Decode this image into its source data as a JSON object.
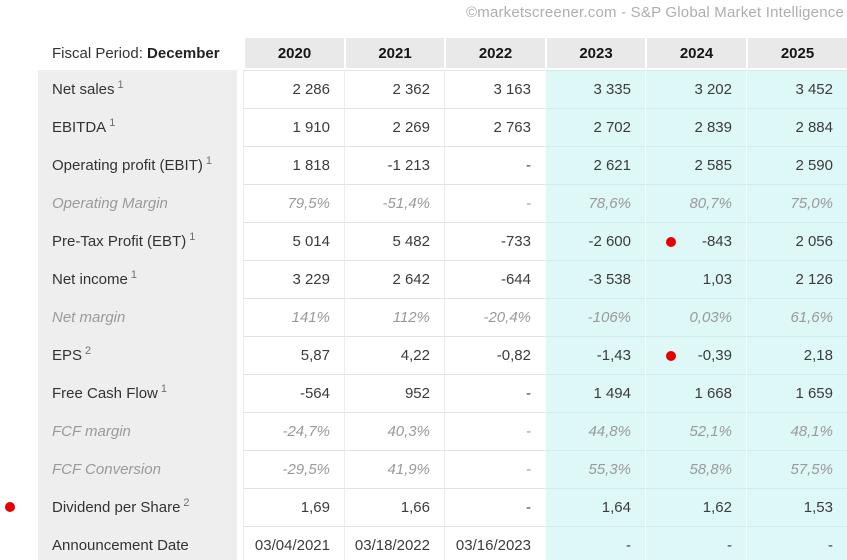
{
  "watermark": "©marketscreener.com - S&P Global Market Intelligence",
  "colors": {
    "highlight_estimate_columns": "#def7f7",
    "label_column_bg": "#eeeeee",
    "header_bg": "#e9e9e9",
    "marker_red": "#e60000",
    "muted_text": "#9a9a9a"
  },
  "table": {
    "header": {
      "fiscal_period_label": "Fiscal Period:",
      "fiscal_period_value": "December",
      "years": [
        "2020",
        "2021",
        "2022",
        "2023",
        "2024",
        "2025"
      ]
    },
    "highlight_from_column": 3,
    "rows": [
      {
        "label": "Net sales",
        "sup": "1",
        "muted": false,
        "values": [
          "2 286",
          "2 362",
          "3 163",
          "3 335",
          "3 202",
          "3 452"
        ]
      },
      {
        "label": "EBITDA",
        "sup": "1",
        "muted": false,
        "values": [
          "1 910",
          "2 269",
          "2 763",
          "2 702",
          "2 839",
          "2 884"
        ]
      },
      {
        "label": "Operating profit (EBIT)",
        "sup": "1",
        "muted": false,
        "values": [
          "1 818",
          "-1 213",
          "-",
          "2 621",
          "2 585",
          "2 590"
        ]
      },
      {
        "label": "Operating Margin",
        "muted": true,
        "values": [
          "79,5%",
          "-51,4%",
          "-",
          "78,6%",
          "80,7%",
          "75,0%"
        ]
      },
      {
        "label": "Pre-Tax Profit (EBT)",
        "sup": "1",
        "muted": false,
        "dot_col": 4,
        "values": [
          "5 014",
          "5 482",
          "-733",
          "-2 600",
          "-843",
          "2 056"
        ]
      },
      {
        "label": "Net income",
        "sup": "1",
        "muted": false,
        "values": [
          "3 229",
          "2 642",
          "-644",
          "-3 538",
          "1,03",
          "2 126"
        ]
      },
      {
        "label": "Net margin",
        "muted": true,
        "values": [
          "141%",
          "112%",
          "-20,4%",
          "-106%",
          "0,03%",
          "61,6%"
        ]
      },
      {
        "label": "EPS",
        "sup": "2",
        "muted": false,
        "dot_col": 4,
        "values": [
          "5,87",
          "4,22",
          "-0,82",
          "-1,43",
          "-0,39",
          "2,18"
        ]
      },
      {
        "label": "Free Cash Flow",
        "sup": "1",
        "muted": false,
        "values": [
          "-564",
          "952",
          "-",
          "1 494",
          "1 668",
          "1 659"
        ]
      },
      {
        "label": "FCF margin",
        "muted": true,
        "values": [
          "-24,7%",
          "40,3%",
          "-",
          "44,8%",
          "52,1%",
          "48,1%"
        ]
      },
      {
        "label": "FCF Conversion",
        "muted": true,
        "values": [
          "-29,5%",
          "41,9%",
          "-",
          "55,3%",
          "58,8%",
          "57,5%"
        ]
      },
      {
        "label": "Dividend per Share",
        "sup": "2",
        "muted": false,
        "left_dot": true,
        "values": [
          "1,69",
          "1,66",
          "-",
          "1,64",
          "1,62",
          "1,53"
        ]
      },
      {
        "label": "Announcement Date",
        "muted": false,
        "values": [
          "03/04/2021",
          "03/18/2022",
          "03/16/2023",
          "-",
          "-",
          "-"
        ]
      }
    ]
  }
}
